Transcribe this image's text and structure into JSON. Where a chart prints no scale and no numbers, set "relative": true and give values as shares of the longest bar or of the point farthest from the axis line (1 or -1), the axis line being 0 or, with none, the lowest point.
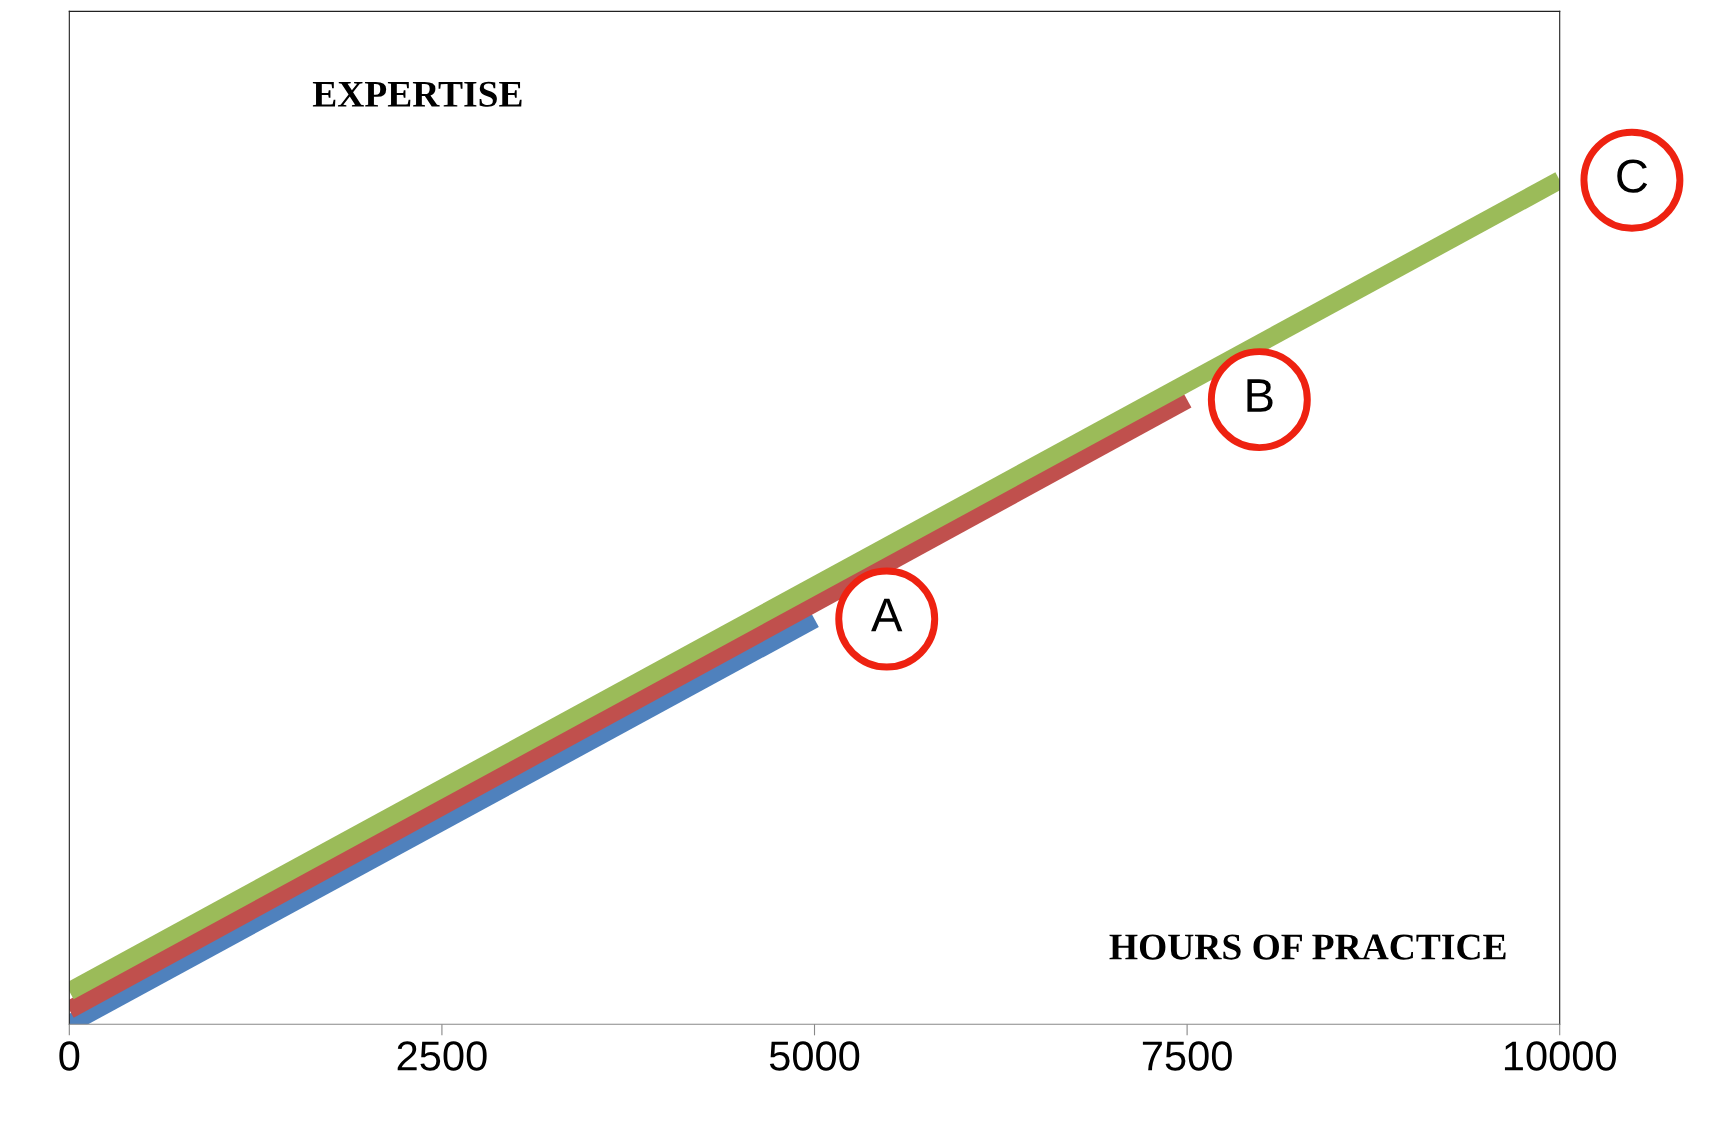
{
  "chart_data": {
    "type": "line",
    "relative": true,
    "xlabel": "HOURS OF PRACTICE",
    "ylabel": "EXPERTISE",
    "xlim": [
      0,
      10000
    ],
    "xticks": [
      0,
      2500,
      5000,
      7500,
      10000
    ],
    "grid": false,
    "legend": false,
    "marker": "none",
    "line_style": "solid",
    "series": [
      {
        "color": "#4f81bd",
        "x": [
          0,
          5000
        ],
        "values": [
          0,
          0.48
        ]
      },
      {
        "color": "#c0504d",
        "x": [
          0,
          7500
        ],
        "values": [
          0.017,
          0.74
        ]
      },
      {
        "color": "#9bbb59",
        "x": [
          0,
          10000
        ],
        "values": [
          0.039,
          1
        ]
      }
    ],
    "annotations": [
      {
        "text": "A",
        "x": 5000,
        "y": 0.48
      },
      {
        "text": "B",
        "x": 7500,
        "y": 0.74
      },
      {
        "text": "C",
        "x": 10000,
        "y": 1
      }
    ]
  }
}
